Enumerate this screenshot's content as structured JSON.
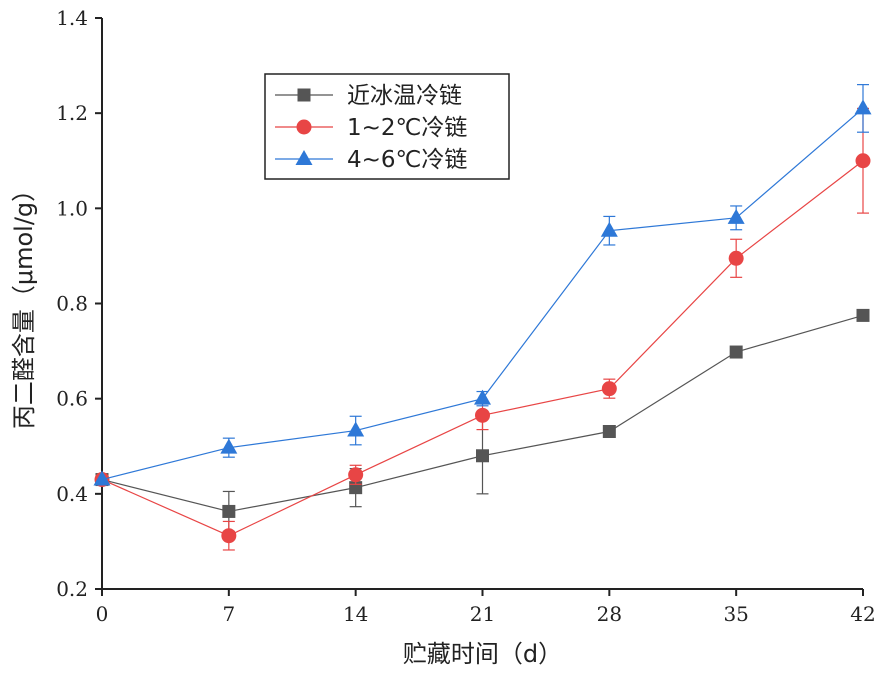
{
  "chart_data": {
    "type": "line",
    "title": "",
    "xlabel": "贮藏时间（d）",
    "ylabel": "丙二醛含量（μmol/g）",
    "x": [
      0,
      7,
      14,
      21,
      28,
      35,
      42
    ],
    "x_tick_labels": [
      "0",
      "7",
      "14",
      "21",
      "28",
      "35",
      "42"
    ],
    "xlim": [
      0,
      42
    ],
    "ylim": [
      0.2,
      1.4
    ],
    "y_ticks": [
      0.2,
      0.4,
      0.6,
      0.8,
      1.0,
      1.2,
      1.4
    ],
    "y_tick_labels": [
      "0.2",
      "0.4",
      "0.6",
      "0.8",
      "1.0",
      "1.2",
      "1.4"
    ],
    "grid": false,
    "legend_position": "top-left",
    "series": [
      {
        "name": "近冰温冷链",
        "marker": "square",
        "color": "#555555",
        "values": [
          0.43,
          0.363,
          0.413,
          0.48,
          0.531,
          0.698,
          0.775
        ],
        "errors": [
          0,
          0.042,
          0.04,
          0.08,
          0,
          0,
          0
        ]
      },
      {
        "name": "1~2℃冷链",
        "marker": "circle",
        "color": "#e84545",
        "values": [
          0.43,
          0.312,
          0.44,
          0.565,
          0.621,
          0.895,
          1.1
        ],
        "errors": [
          0,
          0.03,
          0.02,
          0.03,
          0.02,
          0.04,
          0.11
        ]
      },
      {
        "name": "4~6℃冷链",
        "marker": "triangle",
        "color": "#2e78d7",
        "values": [
          0.43,
          0.497,
          0.533,
          0.6,
          0.953,
          0.98,
          1.21
        ],
        "errors": [
          0,
          0.02,
          0.03,
          0.015,
          0.03,
          0.025,
          0.05
        ]
      }
    ]
  }
}
